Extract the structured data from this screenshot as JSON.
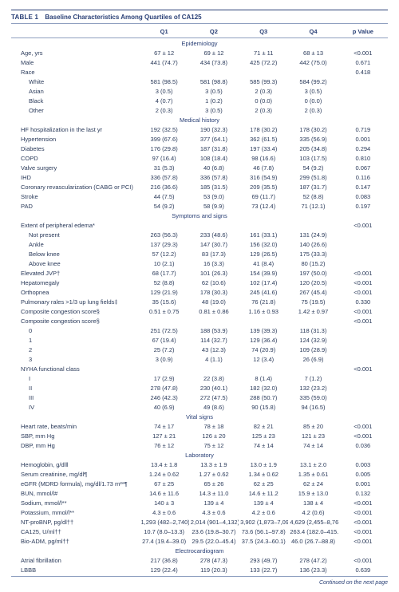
{
  "table": {
    "number": "TABLE 1",
    "title": "Baseline Characteristics Among Quartiles of CA125",
    "columns": [
      "",
      "Q1",
      "Q2",
      "Q3",
      "Q4",
      "p Value"
    ],
    "footer": "Continued on the next page",
    "colors": {
      "text": "#2a3a5a",
      "heading": "#2a4076",
      "rule": "#8fa0c0",
      "background": "#ffffff"
    },
    "fontsize_pt": 7.5,
    "sections": [
      {
        "name": "Epidemiology",
        "rows": [
          {
            "label": "Age, yrs",
            "indent": 1,
            "cells": [
              "67 ± 12",
              "69 ± 12",
              "71 ± 11",
              "68 ± 13",
              "<0.001"
            ]
          },
          {
            "label": "Male",
            "indent": 1,
            "cells": [
              "441 (74.7)",
              "434 (73.8)",
              "425 (72.2)",
              "442 (75.0)",
              "0.671"
            ]
          },
          {
            "label": "Race",
            "indent": 1,
            "cells": [
              "",
              "",
              "",
              "",
              "0.418"
            ]
          },
          {
            "label": "White",
            "indent": 2,
            "cells": [
              "581 (98.5)",
              "581 (98.8)",
              "585 (99.3)",
              "584 (99.2)",
              ""
            ]
          },
          {
            "label": "Asian",
            "indent": 2,
            "cells": [
              "3 (0.5)",
              "3 (0.5)",
              "2 (0.3)",
              "3 (0.5)",
              ""
            ]
          },
          {
            "label": "Black",
            "indent": 2,
            "cells": [
              "4 (0.7)",
              "1 (0.2)",
              "0 (0.0)",
              "0 (0.0)",
              ""
            ]
          },
          {
            "label": "Other",
            "indent": 2,
            "cells": [
              "2 (0.3)",
              "3 (0.5)",
              "2 (0.3)",
              "2 (0.3)",
              ""
            ]
          }
        ]
      },
      {
        "name": "Medical history",
        "rows": [
          {
            "label": "HF hospitalization in the last yr",
            "indent": 1,
            "cells": [
              "192 (32.5)",
              "190 (32.3)",
              "178 (30.2)",
              "178 (30.2)",
              "0.719"
            ]
          },
          {
            "label": "Hypertension",
            "indent": 1,
            "cells": [
              "399 (67.6)",
              "377 (64.1)",
              "362 (61.5)",
              "335 (56.9)",
              "0.001"
            ]
          },
          {
            "label": "Diabetes",
            "indent": 1,
            "cells": [
              "176 (29.8)",
              "187 (31.8)",
              "197 (33.4)",
              "205 (34.8)",
              "0.294"
            ]
          },
          {
            "label": "COPD",
            "indent": 1,
            "cells": [
              "97 (16.4)",
              "108 (18.4)",
              "98 (16.6)",
              "103 (17.5)",
              "0.810"
            ]
          },
          {
            "label": "Valve surgery",
            "indent": 1,
            "cells": [
              "31 (5.3)",
              "40 (6.8)",
              "46 (7.8)",
              "54 (9.2)",
              "0.067"
            ]
          },
          {
            "label": "IHD",
            "indent": 1,
            "cells": [
              "336 (57.8)",
              "336 (57.8)",
              "316 (54.9)",
              "299 (51.8)",
              "0.116"
            ]
          },
          {
            "label": "Coronary revascularization (CABG or PCI)",
            "indent": 1,
            "cells": [
              "216 (36.6)",
              "185 (31.5)",
              "209 (35.5)",
              "187 (31.7)",
              "0.147"
            ]
          },
          {
            "label": "Stroke",
            "indent": 1,
            "cells": [
              "44 (7.5)",
              "53 (9.0)",
              "69 (11.7)",
              "52 (8.8)",
              "0.083"
            ]
          },
          {
            "label": "PAD",
            "indent": 1,
            "cells": [
              "54 (9.2)",
              "58 (9.9)",
              "73 (12.4)",
              "71 (12.1)",
              "0.197"
            ]
          }
        ]
      },
      {
        "name": "Symptoms and signs",
        "rows": [
          {
            "label": "Extent of peripheral edema*",
            "indent": 1,
            "cells": [
              "",
              "",
              "",
              "",
              "<0.001"
            ]
          },
          {
            "label": "Not present",
            "indent": 2,
            "cells": [
              "263 (56.3)",
              "233 (48.6)",
              "161 (33.1)",
              "131 (24.9)",
              ""
            ]
          },
          {
            "label": "Ankle",
            "indent": 2,
            "cells": [
              "137 (29.3)",
              "147 (30.7)",
              "156 (32.0)",
              "140 (26.6)",
              ""
            ]
          },
          {
            "label": "Below knee",
            "indent": 2,
            "cells": [
              "57 (12.2)",
              "83 (17.3)",
              "129 (26.5)",
              "175 (33.3)",
              ""
            ]
          },
          {
            "label": "Above knee",
            "indent": 2,
            "cells": [
              "10 (2.1)",
              "16 (3.3)",
              "41 (8.4)",
              "80 (15.2)",
              ""
            ]
          },
          {
            "label": "Elevated JVP†",
            "indent": 1,
            "cells": [
              "68 (17.7)",
              "101 (26.3)",
              "154 (39.9)",
              "197 (50.0)",
              "<0.001"
            ]
          },
          {
            "label": "Hepatomegaly",
            "indent": 1,
            "cells": [
              "52 (8.8)",
              "62 (10.6)",
              "102 (17.4)",
              "120 (20.5)",
              "<0.001"
            ]
          },
          {
            "label": "Orthopnea",
            "indent": 1,
            "cells": [
              "129 (21.9)",
              "178 (30.3)",
              "245 (41.6)",
              "267 (45.4)",
              "<0.001"
            ]
          },
          {
            "label": "Pulmonary rales >1/3 up lung fields‡",
            "indent": 1,
            "cells": [
              "35 (15.6)",
              "48 (19.0)",
              "76 (21.8)",
              "75 (19.5)",
              "0.330"
            ]
          },
          {
            "label": "Composite congestion score§",
            "indent": 1,
            "cells": [
              "0.51 ± 0.75",
              "0.81 ± 0.86",
              "1.16 ± 0.93",
              "1.42 ± 0.97",
              "<0.001"
            ]
          },
          {
            "label": "Composite congestion score§",
            "indent": 1,
            "cells": [
              "",
              "",
              "",
              "",
              "<0.001"
            ]
          },
          {
            "label": "0",
            "indent": 2,
            "cells": [
              "251 (72.5)",
              "188 (53.9)",
              "139 (39.3)",
              "118 (31.3)",
              ""
            ]
          },
          {
            "label": "1",
            "indent": 2,
            "cells": [
              "67 (19.4)",
              "114 (32.7)",
              "129 (36.4)",
              "124 (32.9)",
              ""
            ]
          },
          {
            "label": "2",
            "indent": 2,
            "cells": [
              "25 (7.2)",
              "43 (12.3)",
              "74 (20.9)",
              "109 (28.9)",
              ""
            ]
          },
          {
            "label": "3",
            "indent": 2,
            "cells": [
              "3 (0.9)",
              "4 (1.1)",
              "12 (3.4)",
              "26 (6.9)",
              ""
            ]
          },
          {
            "label": "NYHA functional class",
            "indent": 1,
            "cells": [
              "",
              "",
              "",
              "",
              "<0.001"
            ]
          },
          {
            "label": "I",
            "indent": 2,
            "cells": [
              "17 (2.9)",
              "22 (3.8)",
              "8 (1.4)",
              "7 (1.2)",
              ""
            ]
          },
          {
            "label": "II",
            "indent": 2,
            "cells": [
              "278 (47.8)",
              "230 (40.1)",
              "182 (32.0)",
              "132 (23.2)",
              ""
            ]
          },
          {
            "label": "III",
            "indent": 2,
            "cells": [
              "246 (42.3)",
              "272 (47.5)",
              "288 (50.7)",
              "335 (59.0)",
              ""
            ]
          },
          {
            "label": "IV",
            "indent": 2,
            "cells": [
              "40 (6.9)",
              "49 (8.6)",
              "90 (15.8)",
              "94 (16.5)",
              ""
            ]
          }
        ]
      },
      {
        "name": "Vital signs",
        "rows": [
          {
            "label": "Heart rate, beats/min",
            "indent": 1,
            "cells": [
              "74 ± 17",
              "78 ± 18",
              "82 ± 21",
              "85 ± 20",
              "<0.001"
            ]
          },
          {
            "label": "SBP, mm Hg",
            "indent": 1,
            "cells": [
              "127 ± 21",
              "126 ± 20",
              "125 ± 23",
              "121 ± 23",
              "<0.001"
            ]
          },
          {
            "label": "DBP, mm Hg",
            "indent": 1,
            "cells": [
              "76 ± 12",
              "75 ± 12",
              "74 ± 14",
              "74 ± 14",
              "0.036"
            ]
          }
        ]
      },
      {
        "name": "Laboratory",
        "rows": [
          {
            "label": "Hemoglobin, g/dl‖",
            "indent": 1,
            "cells": [
              "13.4 ± 1.8",
              "13.3 ± 1.9",
              "13.0 ± 1.9",
              "13.1 ± 2.0",
              "0.003"
            ]
          },
          {
            "label": "Serum creatinine, mg/dl¶",
            "indent": 1,
            "cells": [
              "1.24 ± 0.62",
              "1.27 ± 0.62",
              "1.34 ± 0.62",
              "1.35 ± 0.61",
              "0.005"
            ]
          },
          {
            "label": "eGFR (MDRD formula), mg/dl/1.73 m²*¶",
            "indent": 1,
            "cells": [
              "67 ± 25",
              "65 ± 26",
              "62 ± 25",
              "62 ± 24",
              "0.001"
            ]
          },
          {
            "label": "BUN, mmol/l#",
            "indent": 1,
            "cells": [
              "14.6 ± 11.6",
              "14.3 ± 11.0",
              "14.6 ± 11.2",
              "15.9 ± 13.0",
              "0.132"
            ]
          },
          {
            "label": "Sodium, mmol/l**",
            "indent": 1,
            "cells": [
              "140 ± 3",
              "139 ± 4",
              "139 ± 4",
              "138 ± 4",
              "<0.001"
            ]
          },
          {
            "label": "Potassium, mmol/l**",
            "indent": 1,
            "cells": [
              "4.3 ± 0.6",
              "4.3 ± 0.6",
              "4.2 ± 0.6",
              "4.2 (0.6)",
              "<0.001"
            ]
          },
          {
            "label": "NT-proBNP, pg/dl††",
            "indent": 1,
            "cells": [
              "1,293 (482–2,740)",
              "2,014 (901–4,132)",
              "3,902 (1,873–7,095)",
              "4,629 (2,455–8,768)",
              "<0.001"
            ]
          },
          {
            "label": "CA125, U/ml††",
            "indent": 1,
            "cells": [
              "10.7 (8.0–13.3)",
              "23.6 (19.8–30.7)",
              "73.6 (56.1–97.8)",
              "263.4 (182.0–415.1)",
              "<0.001"
            ]
          },
          {
            "label": "Bio-ADM, pg/ml††",
            "indent": 1,
            "cells": [
              "27.4 (19.4–39.0)",
              "29.5 (22.0–45.4)",
              "37.5 (24.3–60.1)",
              "46.0 (26.7–88.8)",
              "<0.001"
            ]
          }
        ]
      },
      {
        "name": "Electrocardiogram",
        "rows": [
          {
            "label": "Atrial fibrillation",
            "indent": 1,
            "cells": [
              "217 (36.8)",
              "278 (47.3)",
              "293 (49.7)",
              "278 (47.2)",
              "<0.001"
            ]
          },
          {
            "label": "LBBB",
            "indent": 1,
            "cells": [
              "129 (22.4)",
              "119 (20.3)",
              "133 (22.7)",
              "136 (23.3)",
              "0.639"
            ]
          }
        ]
      }
    ]
  }
}
